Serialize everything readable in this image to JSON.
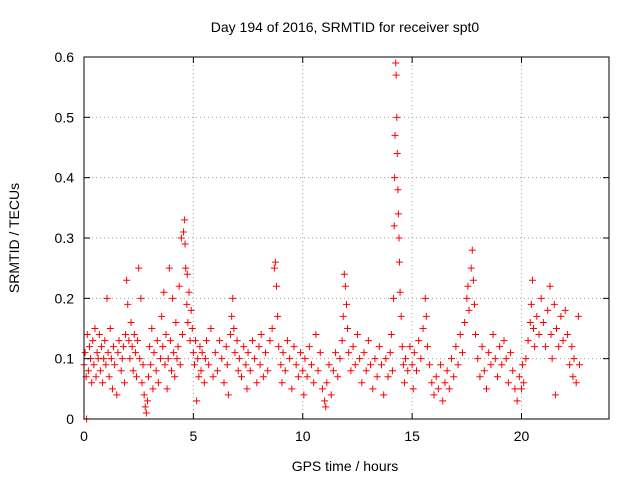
{
  "chart_data": {
    "type": "scatter",
    "title": "Day 194 of 2016, SRMTID for receiver spt0",
    "xlabel": "GPS time / hours",
    "ylabel": "SRMTID / TECUs",
    "xlim": [
      0,
      24
    ],
    "ylim": [
      0,
      0.6
    ],
    "xticks": [
      0,
      5,
      10,
      15,
      20
    ],
    "xtick_labels": [
      "0",
      "5",
      "10",
      "15",
      "20"
    ],
    "yticks": [
      0,
      0.1,
      0.2,
      0.3,
      0.4,
      0.5,
      0.6
    ],
    "ytick_labels": [
      "0",
      "0.1",
      "0.2",
      "0.3",
      "0.4",
      "0.5",
      "0.6"
    ],
    "grid": true,
    "marker": "+",
    "color": "#ff0000",
    "series": [
      {
        "name": "SRMTID",
        "points": [
          [
            0.0,
            0.09
          ],
          [
            0.05,
            0.11
          ],
          [
            0.1,
            0.07
          ],
          [
            0.12,
            0.0
          ],
          [
            0.15,
            0.14
          ],
          [
            0.2,
            0.08
          ],
          [
            0.25,
            0.12
          ],
          [
            0.3,
            0.1
          ],
          [
            0.35,
            0.06
          ],
          [
            0.4,
            0.13
          ],
          [
            0.45,
            0.09
          ],
          [
            0.5,
            0.15
          ],
          [
            0.55,
            0.07
          ],
          [
            0.6,
            0.11
          ],
          [
            0.65,
            0.1
          ],
          [
            0.7,
            0.14
          ],
          [
            0.75,
            0.08
          ],
          [
            0.8,
            0.12
          ],
          [
            0.85,
            0.06
          ],
          [
            0.9,
            0.1
          ],
          [
            0.95,
            0.13
          ],
          [
            1.0,
            0.09
          ],
          [
            1.05,
            0.2
          ],
          [
            1.1,
            0.11
          ],
          [
            1.15,
            0.07
          ],
          [
            1.2,
            0.15
          ],
          [
            1.25,
            0.1
          ],
          [
            1.3,
            0.05
          ],
          [
            1.35,
            0.12
          ],
          [
            1.4,
            0.09
          ],
          [
            1.5,
            0.04
          ],
          [
            1.55,
            0.11
          ],
          [
            1.6,
            0.13
          ],
          [
            1.7,
            0.08
          ],
          [
            1.75,
            0.1
          ],
          [
            1.8,
            0.12
          ],
          [
            1.85,
            0.06
          ],
          [
            1.9,
            0.14
          ],
          [
            1.95,
            0.23
          ],
          [
            2.0,
            0.19
          ],
          [
            2.05,
            0.13
          ],
          [
            2.1,
            0.1
          ],
          [
            2.15,
            0.16
          ],
          [
            2.2,
            0.12
          ],
          [
            2.25,
            0.08
          ],
          [
            2.3,
            0.14
          ],
          [
            2.35,
            0.11
          ],
          [
            2.4,
            0.07
          ],
          [
            2.45,
            0.13
          ],
          [
            2.5,
            0.25
          ],
          [
            2.55,
            0.1
          ],
          [
            2.6,
            0.2
          ],
          [
            2.65,
            0.06
          ],
          [
            2.7,
            0.09
          ],
          [
            2.75,
            0.04
          ],
          [
            2.8,
            0.02
          ],
          [
            2.85,
            0.01
          ],
          [
            2.9,
            0.03
          ],
          [
            2.95,
            0.07
          ],
          [
            3.0,
            0.12
          ],
          [
            3.05,
            0.09
          ],
          [
            3.1,
            0.15
          ],
          [
            3.15,
            0.05
          ],
          [
            3.2,
            0.11
          ],
          [
            3.3,
            0.08
          ],
          [
            3.35,
            0.13
          ],
          [
            3.4,
            0.06
          ],
          [
            3.5,
            0.1
          ],
          [
            3.55,
            0.17
          ],
          [
            3.6,
            0.12
          ],
          [
            3.65,
            0.21
          ],
          [
            3.7,
            0.09
          ],
          [
            3.75,
            0.14
          ],
          [
            3.8,
            0.05
          ],
          [
            3.85,
            0.1
          ],
          [
            3.9,
            0.25
          ],
          [
            3.95,
            0.13
          ],
          [
            4.0,
            0.08
          ],
          [
            4.05,
            0.2
          ],
          [
            4.1,
            0.11
          ],
          [
            4.15,
            0.07
          ],
          [
            4.2,
            0.16
          ],
          [
            4.25,
            0.1
          ],
          [
            4.3,
            0.12
          ],
          [
            4.35,
            0.22
          ],
          [
            4.4,
            0.09
          ],
          [
            4.45,
            0.3
          ],
          [
            4.5,
            0.14
          ],
          [
            4.55,
            0.31
          ],
          [
            4.6,
            0.33
          ],
          [
            4.62,
            0.29
          ],
          [
            4.65,
            0.25
          ],
          [
            4.7,
            0.19
          ],
          [
            4.72,
            0.24
          ],
          [
            4.75,
            0.16
          ],
          [
            4.8,
            0.21
          ],
          [
            4.85,
            0.13
          ],
          [
            4.9,
            0.18
          ],
          [
            4.95,
            0.15
          ],
          [
            5.0,
            0.11
          ],
          [
            5.05,
            0.09
          ],
          [
            5.1,
            0.13
          ],
          [
            5.15,
            0.03
          ],
          [
            5.2,
            0.1
          ],
          [
            5.25,
            0.07
          ],
          [
            5.3,
            0.12
          ],
          [
            5.35,
            0.08
          ],
          [
            5.4,
            0.11
          ],
          [
            5.5,
            0.06
          ],
          [
            5.55,
            0.1
          ],
          [
            5.6,
            0.13
          ],
          [
            5.7,
            0.09
          ],
          [
            5.8,
            0.15
          ],
          [
            5.9,
            0.07
          ],
          [
            6.0,
            0.11
          ],
          [
            6.1,
            0.08
          ],
          [
            6.2,
            0.13
          ],
          [
            6.3,
            0.1
          ],
          [
            6.4,
            0.06
          ],
          [
            6.5,
            0.12
          ],
          [
            6.55,
            0.09
          ],
          [
            6.6,
            0.04
          ],
          [
            6.7,
            0.14
          ],
          [
            6.75,
            0.17
          ],
          [
            6.8,
            0.2
          ],
          [
            6.85,
            0.15
          ],
          [
            6.9,
            0.11
          ],
          [
            7.0,
            0.13
          ],
          [
            7.05,
            0.08
          ],
          [
            7.1,
            0.1
          ],
          [
            7.2,
            0.07
          ],
          [
            7.3,
            0.12
          ],
          [
            7.4,
            0.09
          ],
          [
            7.45,
            0.05
          ],
          [
            7.5,
            0.11
          ],
          [
            7.6,
            0.08
          ],
          [
            7.7,
            0.13
          ],
          [
            7.8,
            0.1
          ],
          [
            7.9,
            0.06
          ],
          [
            8.0,
            0.12
          ],
          [
            8.05,
            0.09
          ],
          [
            8.1,
            0.14
          ],
          [
            8.2,
            0.07
          ],
          [
            8.3,
            0.11
          ],
          [
            8.4,
            0.08
          ],
          [
            8.5,
            0.13
          ],
          [
            8.6,
            0.15
          ],
          [
            8.7,
            0.25
          ],
          [
            8.75,
            0.26
          ],
          [
            8.8,
            0.22
          ],
          [
            8.85,
            0.17
          ],
          [
            8.9,
            0.12
          ],
          [
            9.0,
            0.09
          ],
          [
            9.05,
            0.06
          ],
          [
            9.1,
            0.11
          ],
          [
            9.2,
            0.08
          ],
          [
            9.3,
            0.13
          ],
          [
            9.4,
            0.1
          ],
          [
            9.5,
            0.05
          ],
          [
            9.6,
            0.12
          ],
          [
            9.7,
            0.09
          ],
          [
            9.8,
            0.07
          ],
          [
            9.9,
            0.11
          ],
          [
            10.0,
            0.08
          ],
          [
            10.05,
            0.04
          ],
          [
            10.1,
            0.1
          ],
          [
            10.2,
            0.07
          ],
          [
            10.3,
            0.12
          ],
          [
            10.4,
            0.09
          ],
          [
            10.5,
            0.06
          ],
          [
            10.6,
            0.14
          ],
          [
            10.7,
            0.08
          ],
          [
            10.8,
            0.11
          ],
          [
            10.9,
            0.05
          ],
          [
            11.0,
            0.03
          ],
          [
            11.05,
            0.02
          ],
          [
            11.1,
            0.06
          ],
          [
            11.2,
            0.09
          ],
          [
            11.3,
            0.04
          ],
          [
            11.4,
            0.08
          ],
          [
            11.5,
            0.11
          ],
          [
            11.6,
            0.07
          ],
          [
            11.7,
            0.1
          ],
          [
            11.8,
            0.13
          ],
          [
            11.85,
            0.17
          ],
          [
            11.9,
            0.24
          ],
          [
            11.95,
            0.22
          ],
          [
            12.0,
            0.19
          ],
          [
            12.05,
            0.15
          ],
          [
            12.1,
            0.11
          ],
          [
            12.2,
            0.08
          ],
          [
            12.3,
            0.12
          ],
          [
            12.4,
            0.09
          ],
          [
            12.5,
            0.14
          ],
          [
            12.6,
            0.1
          ],
          [
            12.7,
            0.06
          ],
          [
            12.8,
            0.11
          ],
          [
            12.9,
            0.08
          ],
          [
            13.0,
            0.13
          ],
          [
            13.1,
            0.09
          ],
          [
            13.2,
            0.05
          ],
          [
            13.3,
            0.1
          ],
          [
            13.4,
            0.07
          ],
          [
            13.5,
            0.12
          ],
          [
            13.6,
            0.09
          ],
          [
            13.7,
            0.04
          ],
          [
            13.8,
            0.1
          ],
          [
            13.9,
            0.07
          ],
          [
            14.0,
            0.11
          ],
          [
            14.05,
            0.14
          ],
          [
            14.1,
            0.08
          ],
          [
            14.15,
            0.2
          ],
          [
            14.18,
            0.32
          ],
          [
            14.2,
            0.4
          ],
          [
            14.22,
            0.47
          ],
          [
            14.25,
            0.59
          ],
          [
            14.27,
            0.57
          ],
          [
            14.3,
            0.5
          ],
          [
            14.32,
            0.44
          ],
          [
            14.35,
            0.38
          ],
          [
            14.37,
            0.34
          ],
          [
            14.4,
            0.3
          ],
          [
            14.42,
            0.26
          ],
          [
            14.45,
            0.21
          ],
          [
            14.5,
            0.17
          ],
          [
            14.55,
            0.12
          ],
          [
            14.6,
            0.09
          ],
          [
            14.65,
            0.06
          ],
          [
            14.7,
            0.1
          ],
          [
            14.8,
            0.08
          ],
          [
            14.9,
            0.12
          ],
          [
            15.0,
            0.09
          ],
          [
            15.05,
            0.05
          ],
          [
            15.1,
            0.11
          ],
          [
            15.2,
            0.08
          ],
          [
            15.3,
            0.13
          ],
          [
            15.4,
            0.1
          ],
          [
            15.5,
            0.15
          ],
          [
            15.6,
            0.2
          ],
          [
            15.65,
            0.17
          ],
          [
            15.7,
            0.12
          ],
          [
            15.8,
            0.09
          ],
          [
            15.9,
            0.06
          ],
          [
            16.0,
            0.04
          ],
          [
            16.1,
            0.07
          ],
          [
            16.2,
            0.05
          ],
          [
            16.3,
            0.09
          ],
          [
            16.4,
            0.03
          ],
          [
            16.5,
            0.06
          ],
          [
            16.6,
            0.08
          ],
          [
            16.7,
            0.05
          ],
          [
            16.8,
            0.1
          ],
          [
            16.9,
            0.07
          ],
          [
            17.0,
            0.12
          ],
          [
            17.1,
            0.09
          ],
          [
            17.2,
            0.14
          ],
          [
            17.3,
            0.11
          ],
          [
            17.4,
            0.16
          ],
          [
            17.5,
            0.2
          ],
          [
            17.55,
            0.22
          ],
          [
            17.6,
            0.18
          ],
          [
            17.7,
            0.25
          ],
          [
            17.75,
            0.28
          ],
          [
            17.8,
            0.23
          ],
          [
            17.85,
            0.19
          ],
          [
            17.9,
            0.14
          ],
          [
            18.0,
            0.1
          ],
          [
            18.1,
            0.07
          ],
          [
            18.2,
            0.12
          ],
          [
            18.3,
            0.08
          ],
          [
            18.4,
            0.05
          ],
          [
            18.5,
            0.11
          ],
          [
            18.6,
            0.09
          ],
          [
            18.7,
            0.14
          ],
          [
            18.8,
            0.1
          ],
          [
            18.9,
            0.07
          ],
          [
            19.0,
            0.12
          ],
          [
            19.1,
            0.09
          ],
          [
            19.2,
            0.13
          ],
          [
            19.3,
            0.1
          ],
          [
            19.4,
            0.06
          ],
          [
            19.5,
            0.11
          ],
          [
            19.6,
            0.08
          ],
          [
            19.7,
            0.05
          ],
          [
            19.8,
            0.03
          ],
          [
            19.9,
            0.07
          ],
          [
            20.0,
            0.05
          ],
          [
            20.05,
            0.09
          ],
          [
            20.1,
            0.06
          ],
          [
            20.2,
            0.1
          ],
          [
            20.3,
            0.13
          ],
          [
            20.4,
            0.16
          ],
          [
            20.45,
            0.19
          ],
          [
            20.5,
            0.23
          ],
          [
            20.55,
            0.15
          ],
          [
            20.6,
            0.12
          ],
          [
            20.7,
            0.17
          ],
          [
            20.8,
            0.14
          ],
          [
            20.9,
            0.2
          ],
          [
            21.0,
            0.16
          ],
          [
            21.1,
            0.12
          ],
          [
            21.2,
            0.18
          ],
          [
            21.3,
            0.22
          ],
          [
            21.35,
            0.14
          ],
          [
            21.4,
            0.1
          ],
          [
            21.5,
            0.19
          ],
          [
            21.55,
            0.04
          ],
          [
            21.6,
            0.15
          ],
          [
            21.7,
            0.12
          ],
          [
            21.8,
            0.17
          ],
          [
            21.9,
            0.13
          ],
          [
            22.0,
            0.18
          ],
          [
            22.1,
            0.14
          ],
          [
            22.2,
            0.09
          ],
          [
            22.3,
            0.12
          ],
          [
            22.35,
            0.07
          ],
          [
            22.4,
            0.1
          ],
          [
            22.5,
            0.06
          ],
          [
            22.6,
            0.17
          ],
          [
            22.65,
            0.09
          ]
        ]
      }
    ]
  }
}
